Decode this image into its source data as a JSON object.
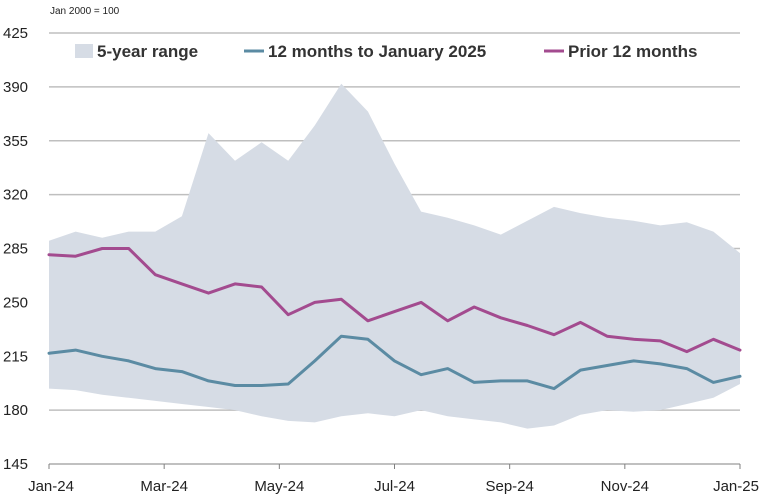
{
  "chart_data": {
    "type": "line",
    "unit_note": "Jan 2000 = 100",
    "title": "",
    "xlabel": "",
    "ylabel": "",
    "ylim": [
      145,
      425
    ],
    "yticks": [
      145,
      180,
      215,
      250,
      285,
      320,
      355,
      390,
      425
    ],
    "xticks": [
      "Jan-24",
      "Mar-24",
      "May-24",
      "Jul-24",
      "Sep-24",
      "Nov-24",
      "Jan-25"
    ],
    "grid": "horizontal",
    "legend_position": "top",
    "colors": {
      "range": "#d6dce5",
      "current": "#5b8ba3",
      "prior": "#a34b8f",
      "grid": "#bfbfbf"
    },
    "x_weeks": [
      0,
      2,
      4,
      6,
      8,
      10,
      12,
      14,
      16,
      18,
      20,
      22,
      24,
      26,
      28,
      30,
      32,
      34,
      36,
      38,
      40,
      42,
      44,
      46,
      48,
      50,
      52
    ],
    "series": [
      {
        "name": "5-year range",
        "kind": "band",
        "lower": [
          194,
          193,
          190,
          188,
          186,
          184,
          182,
          180,
          176,
          173,
          172,
          176,
          178,
          176,
          180,
          176,
          174,
          172,
          168,
          170,
          177,
          180,
          179,
          180,
          184,
          188,
          197
        ],
        "upper": [
          290,
          296,
          292,
          296,
          296,
          306,
          360,
          342,
          354,
          342,
          365,
          392,
          374,
          340,
          309,
          305,
          300,
          294,
          303,
          312,
          308,
          305,
          303,
          300,
          302,
          296,
          282
        ]
      },
      {
        "name": "12 months to January 2025",
        "kind": "line",
        "values": [
          217,
          219,
          215,
          212,
          207,
          205,
          199,
          196,
          196,
          197,
          212,
          228,
          226,
          212,
          203,
          207,
          198,
          199,
          199,
          194,
          206,
          209,
          212,
          210,
          207,
          198,
          202
        ]
      },
      {
        "name": "Prior 12 months",
        "kind": "line",
        "values": [
          281,
          280,
          285,
          285,
          268,
          262,
          256,
          262,
          260,
          242,
          250,
          252,
          238,
          244,
          250,
          238,
          247,
          240,
          235,
          229,
          237,
          228,
          226,
          225,
          218,
          226,
          219
        ]
      }
    ]
  }
}
